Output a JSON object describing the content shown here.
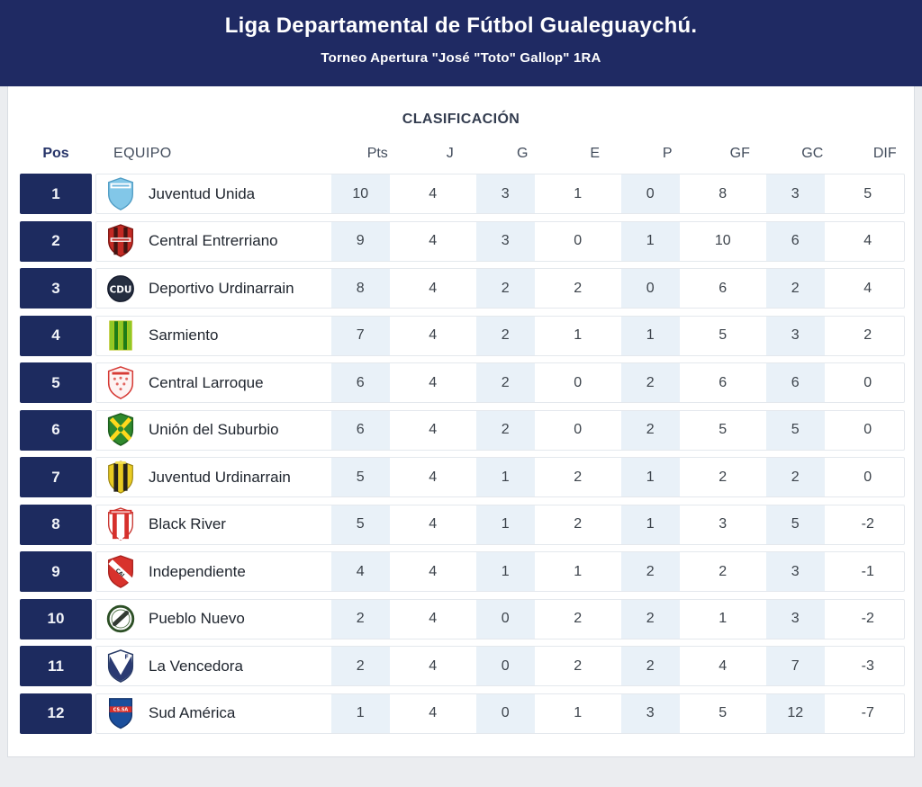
{
  "header": {
    "title": "Liga Departamental de Fútbol Gualeguaychú.",
    "subtitle": "Torneo Apertura \"José \"Toto\" Gallop\" 1RA"
  },
  "table": {
    "section_title": "CLASIFICACIÓN",
    "columns": [
      "Pos",
      "EQUIPO",
      "Pts",
      "J",
      "G",
      "E",
      "P",
      "GF",
      "GC",
      "DIF"
    ],
    "rows": [
      {
        "pos": "1",
        "team": "Juventud Unida",
        "badge": "juventud-unida",
        "stats": [
          "10",
          "4",
          "3",
          "1",
          "0",
          "8",
          "3",
          "5"
        ]
      },
      {
        "pos": "2",
        "team": "Central Entrerriano",
        "badge": "central-entrerriano",
        "stats": [
          "9",
          "4",
          "3",
          "0",
          "1",
          "10",
          "6",
          "4"
        ]
      },
      {
        "pos": "3",
        "team": "Deportivo Urdinarrain",
        "badge": "deportivo-urdinarrain",
        "stats": [
          "8",
          "4",
          "2",
          "2",
          "0",
          "6",
          "2",
          "4"
        ]
      },
      {
        "pos": "4",
        "team": "Sarmiento",
        "badge": "sarmiento",
        "stats": [
          "7",
          "4",
          "2",
          "1",
          "1",
          "5",
          "3",
          "2"
        ]
      },
      {
        "pos": "5",
        "team": "Central Larroque",
        "badge": "central-larroque",
        "stats": [
          "6",
          "4",
          "2",
          "0",
          "2",
          "6",
          "6",
          "0"
        ]
      },
      {
        "pos": "6",
        "team": "Unión del Suburbio",
        "badge": "union-del-suburbio",
        "stats": [
          "6",
          "4",
          "2",
          "0",
          "2",
          "5",
          "5",
          "0"
        ]
      },
      {
        "pos": "7",
        "team": "Juventud Urdinarrain",
        "badge": "juventud-urdinarrain",
        "stats": [
          "5",
          "4",
          "1",
          "2",
          "1",
          "2",
          "2",
          "0"
        ]
      },
      {
        "pos": "8",
        "team": "Black River",
        "badge": "black-river",
        "stats": [
          "5",
          "4",
          "1",
          "2",
          "1",
          "3",
          "5",
          "-2"
        ]
      },
      {
        "pos": "9",
        "team": "Independiente",
        "badge": "independiente",
        "stats": [
          "4",
          "4",
          "1",
          "1",
          "2",
          "2",
          "3",
          "-1"
        ]
      },
      {
        "pos": "10",
        "team": "Pueblo Nuevo",
        "badge": "pueblo-nuevo",
        "stats": [
          "2",
          "4",
          "0",
          "2",
          "2",
          "1",
          "3",
          "-2"
        ]
      },
      {
        "pos": "11",
        "team": "La Vencedora",
        "badge": "la-vencedora",
        "stats": [
          "2",
          "4",
          "0",
          "2",
          "2",
          "4",
          "7",
          "-3"
        ]
      },
      {
        "pos": "12",
        "team": "Sud América",
        "badge": "sud-america",
        "stats": [
          "1",
          "4",
          "0",
          "1",
          "3",
          "5",
          "12",
          "-7"
        ]
      }
    ]
  },
  "colors": {
    "banner": "#1f2a63",
    "position_cell": "#1d2b5f",
    "stat_stripe": "#e9f1f8",
    "card_background": "#ffffff",
    "page_background": "#ebedf0"
  }
}
